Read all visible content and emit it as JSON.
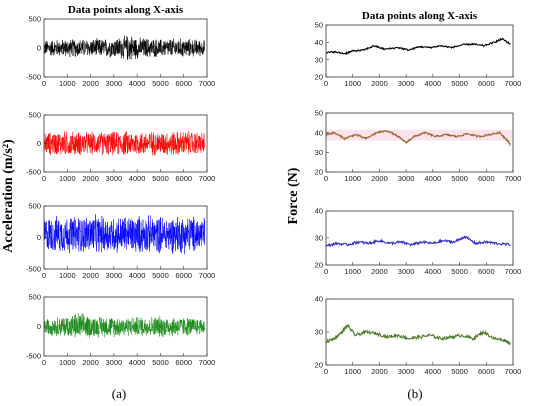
{
  "figure": {
    "caption_left": "(a)",
    "caption_right": "(b)"
  },
  "colors": {
    "black": "#000000",
    "red": "#ff0000",
    "blue": "#0000ff",
    "green": "#1a8a1a",
    "brown": "#a0622d",
    "navy": "#3030c8",
    "olive": "#4e7a2a"
  },
  "chart_data": [
    {
      "id": "acc-x",
      "type": "line",
      "title": "Data points along X-axis",
      "xlabel": "",
      "ylabel": "Acceleration (m/s²)",
      "xlim": [
        0,
        7000
      ],
      "ylim": [
        -500,
        500
      ],
      "xticks": [
        0,
        1000,
        2000,
        3000,
        4000,
        5000,
        6000,
        7000
      ],
      "yticks": [
        500,
        0,
        -500
      ],
      "series": [
        {
          "color": "#000000",
          "mean": 0,
          "amplitude": 170,
          "n_points": 6900,
          "envelope": [
            [
              0,
              150
            ],
            [
              1000,
              170
            ],
            [
              2000,
              170
            ],
            [
              3000,
              180
            ],
            [
              3700,
              260
            ],
            [
              4000,
              200
            ],
            [
              5000,
              170
            ],
            [
              6000,
              180
            ],
            [
              6900,
              150
            ]
          ]
        }
      ]
    },
    {
      "id": "acc-y",
      "type": "line",
      "title": "",
      "xlabel": "",
      "ylabel": "",
      "xlim": [
        0,
        7000
      ],
      "ylim": [
        -500,
        500
      ],
      "xticks": [
        0,
        1000,
        2000,
        3000,
        4000,
        5000,
        6000,
        7000
      ],
      "yticks": [
        500,
        0,
        -500
      ],
      "series": [
        {
          "color": "#ff0000",
          "mean": 0,
          "amplitude": 230,
          "n_points": 6900,
          "envelope": [
            [
              0,
              220
            ],
            [
              1000,
              240
            ],
            [
              2000,
              220
            ],
            [
              3000,
              230
            ],
            [
              4000,
              240
            ],
            [
              5000,
              230
            ],
            [
              6000,
              240
            ],
            [
              6900,
              220
            ]
          ]
        }
      ]
    },
    {
      "id": "acc-z",
      "type": "line",
      "title": "",
      "xlabel": "",
      "ylabel": "",
      "xlim": [
        0,
        7000
      ],
      "ylim": [
        -500,
        500
      ],
      "xticks": [
        0,
        1000,
        2000,
        3000,
        4000,
        5000,
        6000,
        7000
      ],
      "yticks": [
        500,
        0,
        -500
      ],
      "series": [
        {
          "color": "#0000ff",
          "mean": 50,
          "amplitude": 320,
          "n_points": 6900,
          "envelope": [
            [
              0,
              300
            ],
            [
              1000,
              320
            ],
            [
              2000,
              330
            ],
            [
              3000,
              320
            ],
            [
              4000,
              330
            ],
            [
              5000,
              320
            ],
            [
              6000,
              330
            ],
            [
              6900,
              300
            ]
          ]
        }
      ]
    },
    {
      "id": "acc-4",
      "type": "line",
      "title": "",
      "xlabel": "",
      "ylabel": "",
      "xlim": [
        0,
        7000
      ],
      "ylim": [
        -500,
        500
      ],
      "xticks": [
        0,
        1000,
        2000,
        3000,
        4000,
        5000,
        6000,
        7000
      ],
      "yticks": [
        500,
        0,
        -500
      ],
      "series": [
        {
          "color": "#1a8a1a",
          "mean": 0,
          "amplitude": 190,
          "n_points": 6900,
          "envelope": [
            [
              0,
              150
            ],
            [
              1000,
              200
            ],
            [
              1500,
              260
            ],
            [
              2000,
              200
            ],
            [
              3000,
              190
            ],
            [
              4000,
              180
            ],
            [
              5000,
              200
            ],
            [
              6000,
              180
            ],
            [
              6900,
              150
            ]
          ]
        }
      ]
    },
    {
      "id": "force-x",
      "type": "line",
      "title": "Data points along X-axis",
      "xlabel": "",
      "ylabel": "Force (N)",
      "xlim": [
        0,
        7000
      ],
      "ylim": [
        20,
        50
      ],
      "xticks": [
        0,
        1000,
        2000,
        3000,
        4000,
        5000,
        6000,
        7000
      ],
      "yticks": [
        50,
        40,
        30,
        20
      ],
      "series": [
        {
          "color": "#000000",
          "x": [
            0,
            300,
            700,
            1000,
            1400,
            1800,
            2200,
            2700,
            3100,
            3500,
            3900,
            4300,
            4700,
            5100,
            5500,
            5900,
            6300,
            6600,
            6900
          ],
          "y": [
            34,
            34.5,
            33.5,
            35,
            35.5,
            38,
            36,
            37,
            35.5,
            37.5,
            37,
            38,
            37,
            38.5,
            39,
            38,
            40,
            42,
            39
          ]
        }
      ]
    },
    {
      "id": "force-y",
      "type": "line",
      "title": "",
      "xlabel": "",
      "ylabel": "",
      "xlim": [
        0,
        7000
      ],
      "ylim": [
        20,
        50
      ],
      "xticks": [
        0,
        1000,
        2000,
        3000,
        4000,
        5000,
        6000,
        7000
      ],
      "yticks": [
        50,
        40,
        30,
        20
      ],
      "series": [
        {
          "color": "#a0622d",
          "x": [
            0,
            300,
            700,
            1100,
            1500,
            1900,
            2300,
            2700,
            3000,
            3300,
            3700,
            4100,
            4500,
            4900,
            5300,
            5700,
            6100,
            6500,
            6800,
            6900
          ],
          "y": [
            39,
            40,
            37,
            39,
            37,
            40,
            41,
            38,
            35,
            38,
            40,
            38,
            39,
            38,
            39.5,
            38,
            39,
            40,
            36,
            34
          ]
        }
      ]
    },
    {
      "id": "force-z",
      "type": "line",
      "title": "",
      "xlabel": "",
      "ylabel": "",
      "xlim": [
        0,
        7000
      ],
      "ylim": [
        20,
        40
      ],
      "xticks": [
        0,
        1000,
        2000,
        3000,
        4000,
        5000,
        6000,
        7000
      ],
      "yticks": [
        40,
        30,
        20
      ],
      "series": [
        {
          "color": "#3030c8",
          "x": [
            0,
            400,
            800,
            1200,
            1600,
            2000,
            2400,
            2800,
            3200,
            3600,
            4000,
            4400,
            4800,
            5200,
            5600,
            6000,
            6400,
            6900
          ],
          "y": [
            27,
            28,
            27.5,
            28.5,
            28,
            29,
            28,
            28.5,
            27.5,
            28.5,
            28,
            29,
            28.5,
            30.5,
            28,
            28.5,
            28,
            27.5
          ]
        }
      ]
    },
    {
      "id": "force-4",
      "type": "line",
      "title": "",
      "xlabel": "",
      "ylabel": "",
      "xlim": [
        0,
        7000
      ],
      "ylim": [
        20,
        40
      ],
      "xticks": [
        0,
        1000,
        2000,
        3000,
        4000,
        5000,
        6000,
        7000
      ],
      "yticks": [
        40,
        30,
        20
      ],
      "series": [
        {
          "color": "#4e7a2a",
          "x": [
            0,
            300,
            600,
            800,
            1100,
            1500,
            1900,
            2300,
            2700,
            3100,
            3500,
            3900,
            4300,
            4700,
            5100,
            5500,
            5900,
            6300,
            6700,
            6900
          ],
          "y": [
            27,
            28,
            30,
            32,
            29,
            30,
            29.5,
            28.5,
            29,
            28,
            28.5,
            29,
            28,
            28.5,
            29,
            28,
            30,
            28,
            27.5,
            26.5
          ]
        }
      ]
    }
  ]
}
